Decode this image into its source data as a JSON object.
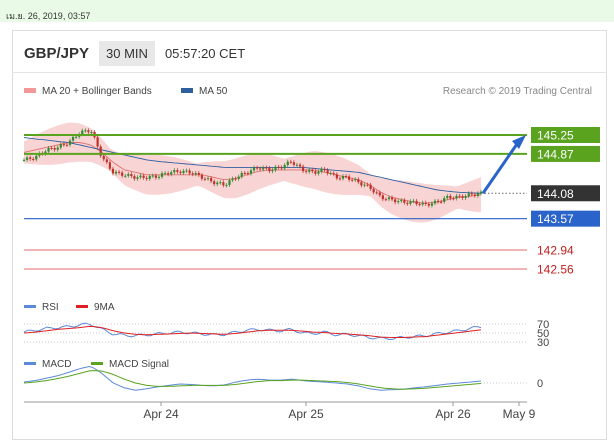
{
  "timestamp": "เม.ย. 26, 2019, 03:57",
  "header": {
    "symbol": "GBP/JPY",
    "timeframe": "30 MIN",
    "clock": "05:57:20 CET"
  },
  "legend": {
    "ma20": "MA 20 + Bollinger Bands",
    "ma50": "MA 50",
    "research": "Research © 2019 Trading Central"
  },
  "colors": {
    "resistance": "#5aa31f",
    "support": "#2a63c9",
    "target_line": "#e46b6b",
    "candle_up": "#2e8b2e",
    "candle_down": "#c2302a",
    "bands": "#f6c9c9",
    "ma20": "#e07070",
    "ma50": "#2f5f9f",
    "rsi": "#5a8ad8",
    "rsi_ma": "#e02020",
    "macd": "#5a8ad8",
    "macd_signal": "#5aa31f"
  },
  "chart_data": [
    {
      "type": "candlestick",
      "price_levels": [
        {
          "label": "145.25",
          "value": 145.25,
          "kind": "resistance"
        },
        {
          "label": "144.87",
          "value": 144.87,
          "kind": "resistance"
        },
        {
          "label": "144.08",
          "value": 144.08,
          "kind": "current"
        },
        {
          "label": "143.57",
          "value": 143.57,
          "kind": "support"
        },
        {
          "label": "142.94",
          "value": 142.94,
          "kind": "target"
        },
        {
          "label": "142.56",
          "value": 142.56,
          "kind": "target"
        }
      ],
      "x_tick_labels": [
        "Apr 24",
        "Apr 25",
        "Apr 26",
        "May 9"
      ],
      "close_path": [
        144.75,
        144.8,
        144.95,
        145.0,
        145.1,
        145.3,
        145.35,
        144.8,
        144.5,
        144.45,
        144.4,
        144.4,
        144.42,
        144.5,
        144.52,
        144.5,
        144.4,
        144.3,
        144.25,
        144.4,
        144.5,
        144.6,
        144.55,
        144.6,
        144.72,
        144.55,
        144.5,
        144.55,
        144.4,
        144.4,
        144.3,
        144.2,
        144.0,
        143.95,
        143.9,
        143.9,
        143.85,
        143.9,
        144.0,
        144.0,
        144.05,
        144.08
      ],
      "ma20_path": [
        144.9,
        144.95,
        145.0,
        145.05,
        145.1,
        145.1,
        145.05,
        144.9,
        144.7,
        144.55,
        144.5,
        144.45,
        144.45,
        144.45,
        144.45,
        144.45,
        144.45,
        144.4,
        144.35,
        144.38,
        144.45,
        144.52,
        144.55,
        144.55,
        144.55,
        144.55,
        144.55,
        144.5,
        144.45,
        144.4,
        144.35,
        144.25,
        144.1,
        144.0,
        143.95,
        143.9,
        143.88,
        143.9,
        143.95,
        144.0,
        144.02,
        144.05
      ],
      "ma50_path": [
        145.2,
        145.17,
        145.15,
        145.12,
        145.1,
        145.05,
        145.0,
        144.95,
        144.9,
        144.85,
        144.8,
        144.75,
        144.72,
        144.7,
        144.68,
        144.66,
        144.64,
        144.62,
        144.6,
        144.6,
        144.6,
        144.6,
        144.6,
        144.6,
        144.6,
        144.6,
        144.58,
        144.56,
        144.54,
        144.52,
        144.5,
        144.45,
        144.4,
        144.35,
        144.3,
        144.25,
        144.2,
        144.15,
        144.12,
        144.1,
        144.09,
        144.08
      ],
      "forecast": {
        "from": 144.08,
        "to": 145.25
      }
    },
    {
      "type": "line",
      "name": "RSI",
      "series": [
        {
          "name": "RSI"
        },
        {
          "name": "9MA"
        }
      ],
      "y_tick_labels": [
        "70",
        "50",
        "30"
      ],
      "rsi_path": [
        52,
        56,
        60,
        62,
        64,
        68,
        70,
        58,
        48,
        45,
        44,
        46,
        48,
        50,
        52,
        50,
        48,
        46,
        47,
        52,
        56,
        58,
        56,
        55,
        58,
        50,
        49,
        52,
        46,
        47,
        44,
        40,
        38,
        38,
        40,
        42,
        44,
        48,
        52,
        55,
        60,
        64
      ],
      "rsi_ma_path": [
        50,
        52,
        55,
        58,
        60,
        62,
        65,
        62,
        55,
        50,
        47,
        46,
        47,
        48,
        49,
        50,
        49,
        48,
        47,
        49,
        52,
        55,
        56,
        56,
        56,
        54,
        52,
        51,
        49,
        48,
        46,
        44,
        41,
        40,
        40,
        41,
        42,
        45,
        48,
        51,
        54,
        57
      ]
    },
    {
      "type": "line",
      "name": "MACD",
      "series": [
        {
          "name": "MACD"
        },
        {
          "name": "MACD Signal"
        }
      ],
      "y_tick_labels": [
        "0"
      ],
      "macd_path": [
        0.02,
        0.05,
        0.1,
        0.15,
        0.22,
        0.3,
        0.35,
        0.2,
        0.0,
        -0.1,
        -0.15,
        -0.12,
        -0.08,
        -0.05,
        -0.02,
        -0.03,
        -0.05,
        -0.06,
        -0.04,
        0.02,
        0.06,
        0.08,
        0.06,
        0.06,
        0.08,
        0.05,
        0.03,
        0.02,
        0.0,
        -0.02,
        -0.06,
        -0.12,
        -0.15,
        -0.14,
        -0.13,
        -0.1,
        -0.08,
        -0.05,
        -0.02,
        0.0,
        0.02,
        0.04
      ],
      "signal_path": [
        0.0,
        0.02,
        0.05,
        0.09,
        0.14,
        0.2,
        0.26,
        0.25,
        0.18,
        0.08,
        0.0,
        -0.05,
        -0.07,
        -0.07,
        -0.06,
        -0.05,
        -0.05,
        -0.05,
        -0.05,
        -0.03,
        0.0,
        0.03,
        0.05,
        0.05,
        0.06,
        0.06,
        0.05,
        0.04,
        0.03,
        0.01,
        -0.02,
        -0.06,
        -0.1,
        -0.12,
        -0.13,
        -0.12,
        -0.11,
        -0.09,
        -0.07,
        -0.05,
        -0.03,
        -0.01
      ]
    }
  ]
}
